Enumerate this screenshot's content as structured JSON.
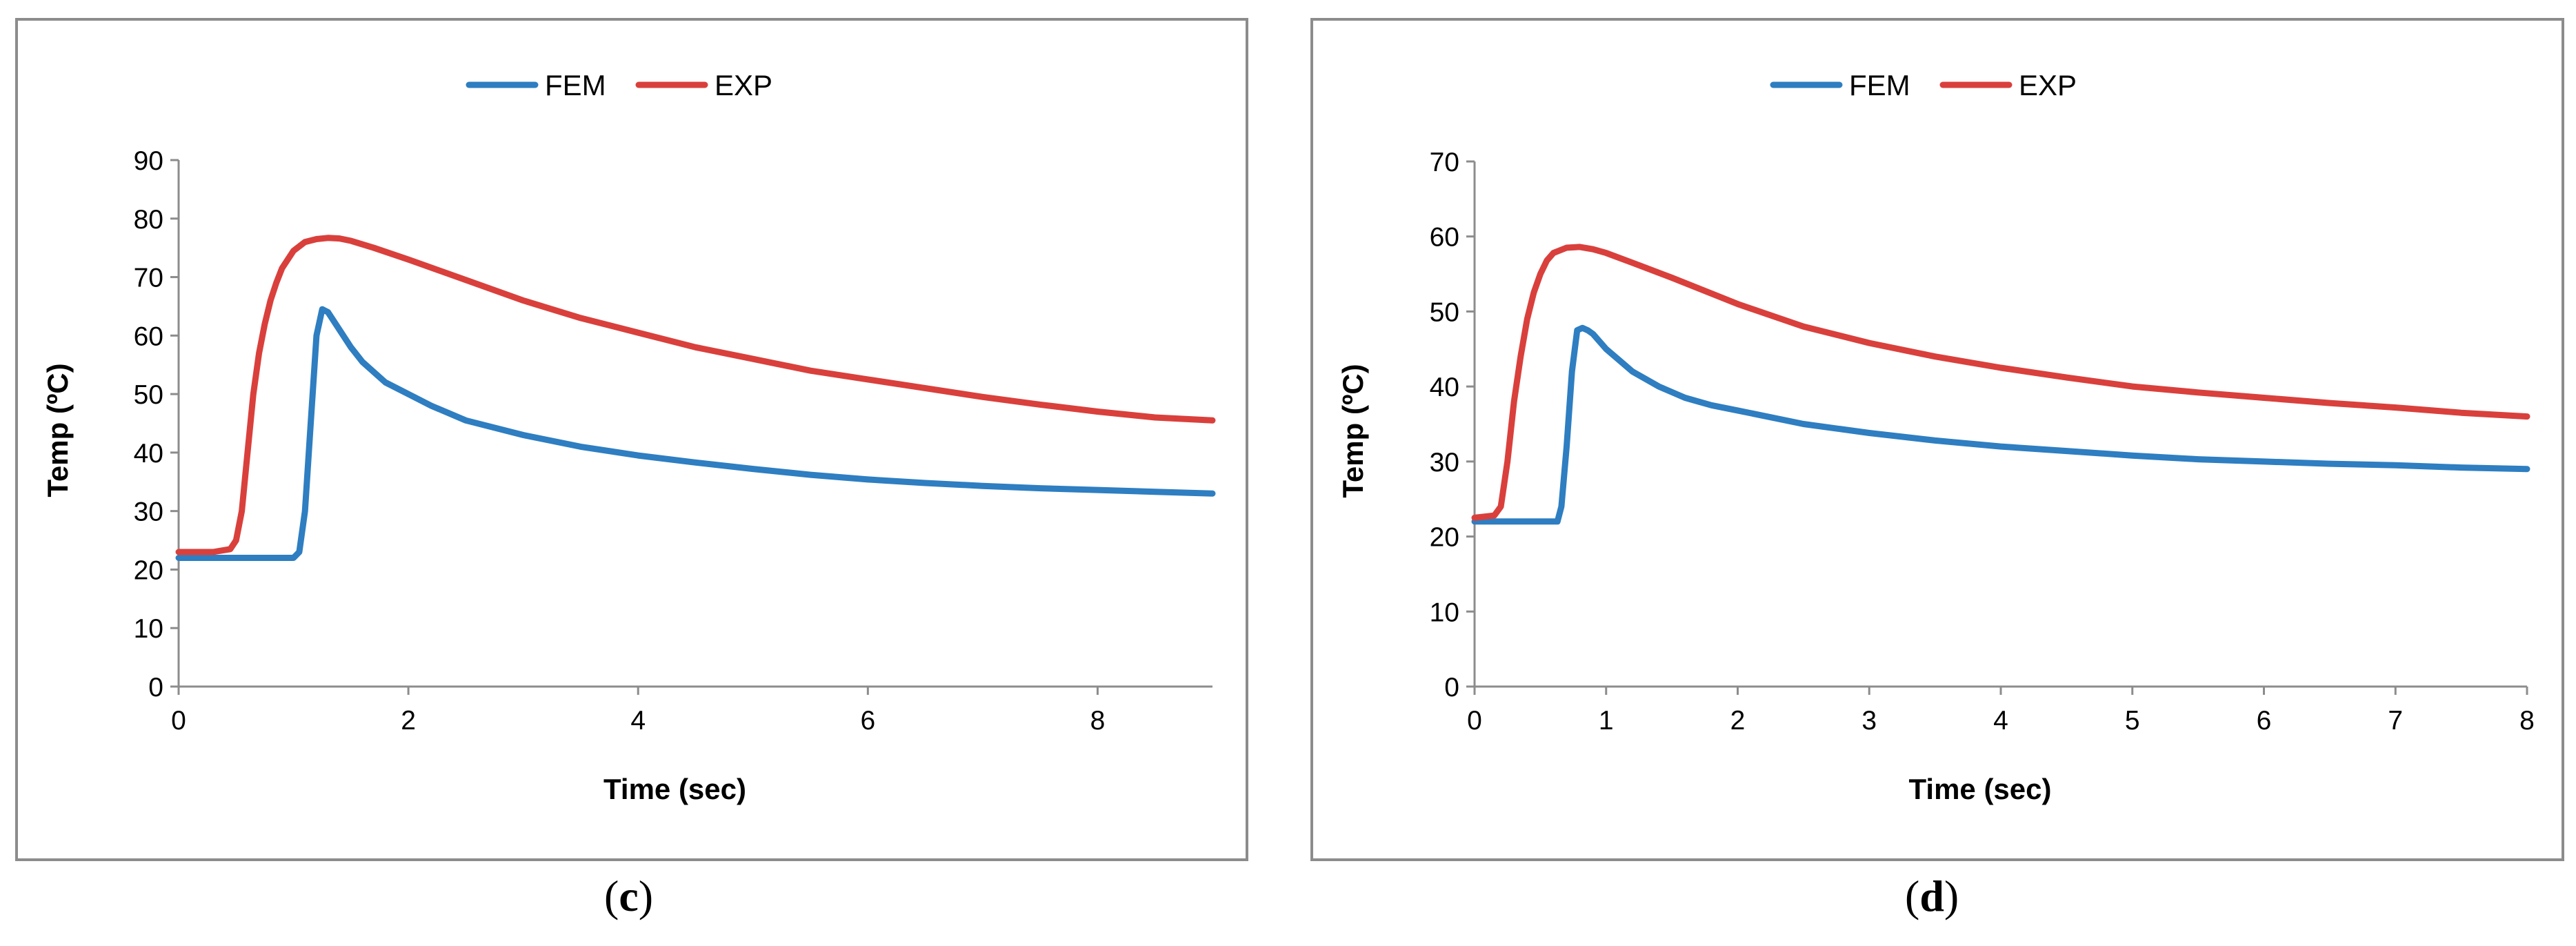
{
  "chart_data": [
    {
      "id": "c",
      "type": "line",
      "caption": {
        "open": "(",
        "letter": "c",
        "close": ")"
      },
      "title": "",
      "xlabel": "Time (sec)",
      "ylabel": "Temp (ºC)",
      "xlim": [
        0,
        9
      ],
      "ylim": [
        0,
        90
      ],
      "xticks": [
        0,
        2,
        4,
        6,
        8
      ],
      "yticks": [
        0,
        10,
        20,
        30,
        40,
        50,
        60,
        70,
        80,
        90
      ],
      "legend_position": "top-center",
      "grid": false,
      "series": [
        {
          "name": "FEM",
          "color": "#2e7ec1",
          "x": [
            0,
            0.5,
            1.0,
            1.05,
            1.1,
            1.15,
            1.2,
            1.25,
            1.3,
            1.4,
            1.5,
            1.6,
            1.8,
            2.0,
            2.2,
            2.5,
            3.0,
            3.5,
            4.0,
            4.5,
            5.0,
            5.5,
            6.0,
            6.5,
            7.0,
            7.5,
            8.0,
            8.5,
            9.0
          ],
          "y": [
            22,
            22,
            22,
            23,
            30,
            45,
            60,
            64.5,
            64,
            61,
            58,
            55.5,
            52,
            50,
            48,
            45.5,
            43,
            41,
            39.5,
            38.3,
            37.2,
            36.2,
            35.4,
            34.8,
            34.3,
            33.9,
            33.6,
            33.3,
            33
          ]
        },
        {
          "name": "EXP",
          "color": "#d9403c",
          "x": [
            0,
            0.3,
            0.45,
            0.5,
            0.55,
            0.6,
            0.65,
            0.7,
            0.75,
            0.8,
            0.85,
            0.9,
            1.0,
            1.1,
            1.2,
            1.3,
            1.4,
            1.5,
            1.7,
            2.0,
            2.5,
            3.0,
            3.5,
            4.0,
            4.5,
            5.0,
            5.5,
            6.0,
            6.5,
            7.0,
            7.5,
            8.0,
            8.5,
            9.0
          ],
          "y": [
            23,
            23,
            23.5,
            25,
            30,
            40,
            50,
            57,
            62,
            66,
            69,
            71.5,
            74.5,
            76,
            76.5,
            76.7,
            76.6,
            76.2,
            75,
            73,
            69.5,
            66,
            63,
            60.5,
            58,
            56,
            54,
            52.5,
            51,
            49.5,
            48.2,
            47,
            46,
            45.5
          ]
        }
      ]
    },
    {
      "id": "d",
      "type": "line",
      "caption": {
        "open": "(",
        "letter": "d",
        "close": ")"
      },
      "title": "",
      "xlabel": "Time (sec)",
      "ylabel": "Temp (ºC)",
      "xlim": [
        0,
        8
      ],
      "ylim": [
        0,
        70
      ],
      "xticks": [
        0,
        1,
        2,
        3,
        4,
        5,
        6,
        7,
        8
      ],
      "yticks": [
        0,
        10,
        20,
        30,
        40,
        50,
        60,
        70
      ],
      "legend_position": "top-center",
      "grid": false,
      "series": [
        {
          "name": "FEM",
          "color": "#2e7ec1",
          "x": [
            0,
            0.4,
            0.63,
            0.66,
            0.7,
            0.74,
            0.78,
            0.82,
            0.86,
            0.9,
            1.0,
            1.1,
            1.2,
            1.4,
            1.6,
            1.8,
            2.0,
            2.5,
            3.0,
            3.5,
            4.0,
            4.5,
            5.0,
            5.5,
            6.0,
            6.5,
            7.0,
            7.5,
            8.0
          ],
          "y": [
            22,
            22,
            22,
            24,
            32,
            42,
            47.5,
            47.8,
            47.5,
            47,
            45,
            43.5,
            42,
            40,
            38.5,
            37.5,
            36.8,
            35,
            33.8,
            32.8,
            32,
            31.4,
            30.8,
            30.3,
            30,
            29.7,
            29.5,
            29.2,
            29
          ]
        },
        {
          "name": "EXP",
          "color": "#d9403c",
          "x": [
            0,
            0.15,
            0.2,
            0.25,
            0.3,
            0.35,
            0.4,
            0.45,
            0.5,
            0.55,
            0.6,
            0.7,
            0.8,
            0.9,
            1.0,
            1.2,
            1.5,
            2.0,
            2.5,
            3.0,
            3.5,
            4.0,
            4.5,
            5.0,
            5.5,
            6.0,
            6.5,
            7.0,
            7.5,
            8.0
          ],
          "y": [
            22.5,
            22.8,
            24,
            30,
            38,
            44,
            49,
            52.5,
            55,
            56.8,
            57.8,
            58.5,
            58.6,
            58.3,
            57.8,
            56.5,
            54.5,
            51,
            48,
            45.8,
            44,
            42.5,
            41.2,
            40,
            39.2,
            38.5,
            37.8,
            37.2,
            36.5,
            36
          ]
        }
      ]
    }
  ]
}
